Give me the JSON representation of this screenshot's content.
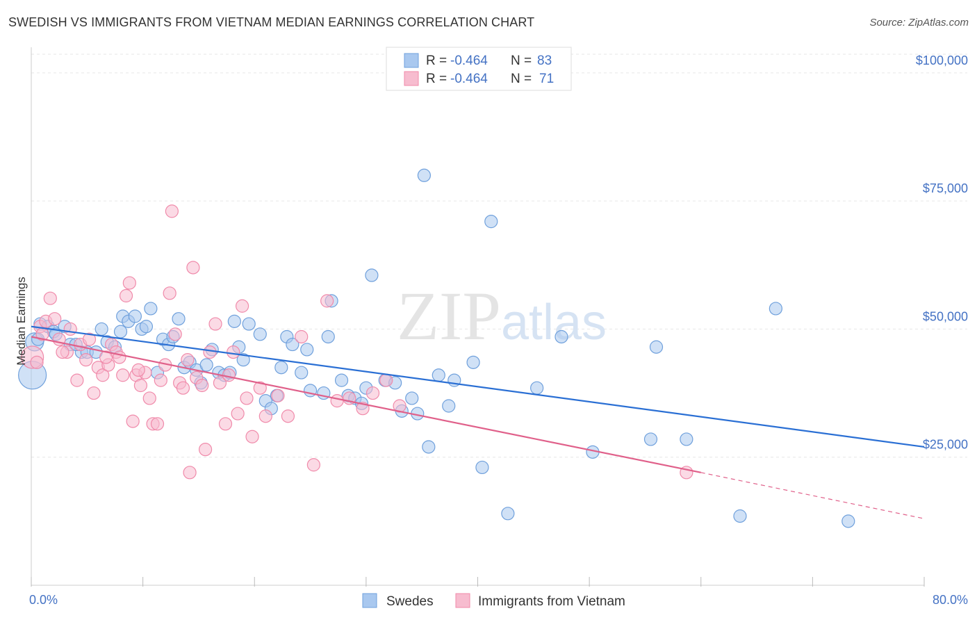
{
  "chart_data": {
    "type": "scatter",
    "title": "SWEDISH VS IMMIGRANTS FROM VIETNAM MEDIAN EARNINGS CORRELATION CHART",
    "source": "Source: ZipAtlas.com",
    "watermark": "ZIPatlas",
    "ylabel": "Median Earnings",
    "xlim": [
      0,
      80
    ],
    "ylim": [
      0,
      105000
    ],
    "x_tick_labels": [
      "0.0%",
      "80.0%"
    ],
    "y_ticks": [
      {
        "value": 100000,
        "label": "$100,000"
      },
      {
        "value": 75000,
        "label": "$75,000"
      },
      {
        "value": 50000,
        "label": "$50,000"
      },
      {
        "value": 25000,
        "label": "$25,000"
      }
    ],
    "grid": true,
    "legend": {
      "placement": "top-center",
      "rows": [
        {
          "r_label": "R = ",
          "r_value": "-0.464",
          "n_label": "N = ",
          "n_value": "83"
        },
        {
          "r_label": "R = ",
          "r_value": "-0.464",
          "n_label": "N = ",
          "n_value": "71"
        }
      ]
    },
    "series": [
      {
        "name": "Swedes",
        "color": "#6fa0dc",
        "fill": "#a9c8ef",
        "line_color": "#2a6fd4",
        "trend": {
          "x": [
            0,
            80
          ],
          "y": [
            50500,
            27000
          ]
        },
        "points": [
          [
            0.1,
            41000
          ],
          [
            0.3,
            47500
          ],
          [
            0.8,
            51000
          ],
          [
            1.5,
            50500
          ],
          [
            2.0,
            49500
          ],
          [
            2.2,
            49000
          ],
          [
            3.0,
            50500
          ],
          [
            3.5,
            47000
          ],
          [
            4.5,
            45500
          ],
          [
            5.0,
            45500
          ],
          [
            5.8,
            45500
          ],
          [
            6.3,
            50000
          ],
          [
            6.8,
            47500
          ],
          [
            7.5,
            46500
          ],
          [
            8.0,
            49500
          ],
          [
            8.2,
            52500
          ],
          [
            8.7,
            51500
          ],
          [
            9.3,
            52500
          ],
          [
            9.9,
            50000
          ],
          [
            10.3,
            50500
          ],
          [
            10.7,
            54000
          ],
          [
            11.3,
            41500
          ],
          [
            11.8,
            48000
          ],
          [
            12.3,
            47000
          ],
          [
            12.7,
            48500
          ],
          [
            13.2,
            52000
          ],
          [
            13.7,
            42500
          ],
          [
            14.2,
            43500
          ],
          [
            14.8,
            42000
          ],
          [
            15.2,
            39500
          ],
          [
            15.7,
            43000
          ],
          [
            16.2,
            46000
          ],
          [
            16.8,
            41500
          ],
          [
            17.3,
            41000
          ],
          [
            17.8,
            41500
          ],
          [
            18.2,
            51500
          ],
          [
            18.6,
            46500
          ],
          [
            19.0,
            44000
          ],
          [
            19.5,
            51000
          ],
          [
            20.5,
            49000
          ],
          [
            21.0,
            36000
          ],
          [
            21.5,
            34500
          ],
          [
            22.0,
            37000
          ],
          [
            22.4,
            42500
          ],
          [
            22.9,
            48500
          ],
          [
            23.4,
            47000
          ],
          [
            24.2,
            41500
          ],
          [
            24.7,
            46000
          ],
          [
            25.0,
            38000
          ],
          [
            26.2,
            37500
          ],
          [
            26.6,
            48500
          ],
          [
            26.9,
            55500
          ],
          [
            27.8,
            40000
          ],
          [
            28.4,
            37000
          ],
          [
            29.0,
            36500
          ],
          [
            29.6,
            35500
          ],
          [
            30.0,
            38500
          ],
          [
            30.5,
            60500
          ],
          [
            31.7,
            40000
          ],
          [
            32.6,
            39500
          ],
          [
            33.2,
            34000
          ],
          [
            34.1,
            36500
          ],
          [
            34.6,
            33500
          ],
          [
            35.2,
            80000
          ],
          [
            35.6,
            27000
          ],
          [
            36.5,
            41000
          ],
          [
            37.4,
            35000
          ],
          [
            37.9,
            40000
          ],
          [
            39.6,
            43500
          ],
          [
            40.4,
            23000
          ],
          [
            41.2,
            71000
          ],
          [
            42.7,
            14000
          ],
          [
            45.3,
            38500
          ],
          [
            47.5,
            48500
          ],
          [
            50.3,
            26000
          ],
          [
            55.5,
            28500
          ],
          [
            56.0,
            46500
          ],
          [
            58.7,
            28500
          ],
          [
            63.5,
            13500
          ],
          [
            66.7,
            54000
          ],
          [
            73.2,
            12500
          ],
          [
            0.6,
            48000
          ],
          [
            4.0,
            47000
          ]
        ]
      },
      {
        "name": "Immigrants from Vietnam",
        "color": "#f08aaa",
        "fill": "#f7bccf",
        "line_color": "#e0608a",
        "trend": {
          "x": [
            0,
            60
          ],
          "y": [
            48500,
            22000
          ]
        },
        "trend_dashed": {
          "x": [
            60,
            80
          ],
          "y": [
            22000,
            13000
          ]
        },
        "points": [
          [
            0.1,
            44500
          ],
          [
            0.8,
            50500
          ],
          [
            1.3,
            51500
          ],
          [
            1.7,
            56000
          ],
          [
            2.1,
            52000
          ],
          [
            2.5,
            48000
          ],
          [
            3.2,
            45500
          ],
          [
            3.5,
            50000
          ],
          [
            4.1,
            40000
          ],
          [
            4.4,
            47000
          ],
          [
            4.9,
            44000
          ],
          [
            5.2,
            48000
          ],
          [
            5.6,
            37500
          ],
          [
            6.0,
            42500
          ],
          [
            6.4,
            41000
          ],
          [
            6.9,
            43000
          ],
          [
            7.2,
            47000
          ],
          [
            7.6,
            45500
          ],
          [
            8.2,
            41000
          ],
          [
            8.5,
            56500
          ],
          [
            8.8,
            59000
          ],
          [
            9.1,
            32000
          ],
          [
            9.4,
            41000
          ],
          [
            9.8,
            39000
          ],
          [
            10.2,
            41500
          ],
          [
            10.6,
            36500
          ],
          [
            10.9,
            31500
          ],
          [
            11.3,
            31500
          ],
          [
            11.6,
            40000
          ],
          [
            12.0,
            43000
          ],
          [
            12.4,
            57000
          ],
          [
            12.6,
            73000
          ],
          [
            12.9,
            49000
          ],
          [
            13.3,
            39500
          ],
          [
            13.6,
            38500
          ],
          [
            14.2,
            22000
          ],
          [
            14.5,
            62000
          ],
          [
            14.8,
            40500
          ],
          [
            15.3,
            39000
          ],
          [
            15.6,
            26500
          ],
          [
            16.5,
            51000
          ],
          [
            16.9,
            39500
          ],
          [
            17.4,
            31500
          ],
          [
            17.7,
            41000
          ],
          [
            18.1,
            45500
          ],
          [
            18.5,
            33500
          ],
          [
            18.9,
            54500
          ],
          [
            19.3,
            36500
          ],
          [
            19.8,
            29000
          ],
          [
            20.5,
            38500
          ],
          [
            21.0,
            33000
          ],
          [
            22.1,
            37000
          ],
          [
            23.0,
            33000
          ],
          [
            24.2,
            48500
          ],
          [
            25.3,
            23500
          ],
          [
            26.5,
            55500
          ],
          [
            27.4,
            36000
          ],
          [
            28.5,
            36500
          ],
          [
            29.7,
            34500
          ],
          [
            30.6,
            37500
          ],
          [
            31.8,
            40000
          ],
          [
            33.0,
            35000
          ],
          [
            58.7,
            22000
          ],
          [
            0.5,
            43500
          ],
          [
            1.0,
            49000
          ],
          [
            2.8,
            45500
          ],
          [
            6.7,
            44500
          ],
          [
            7.9,
            44500
          ],
          [
            9.6,
            42000
          ],
          [
            14.0,
            44000
          ],
          [
            16.0,
            45500
          ]
        ]
      }
    ]
  }
}
